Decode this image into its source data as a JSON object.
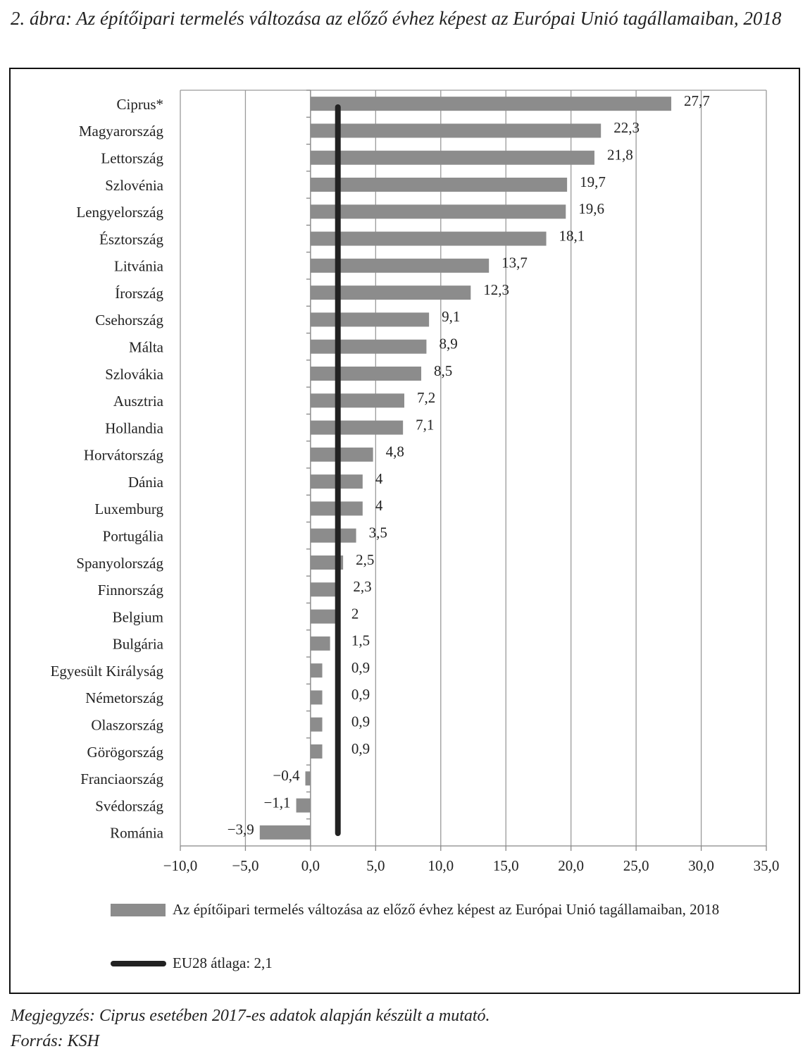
{
  "chart_data": {
    "type": "bar",
    "orientation": "horizontal",
    "title": "2. ábra: Az építőipari termelés változása az előző évhez képest az Európai Unió tagállamaiban, 2018",
    "categories": [
      "Ciprus*",
      "Magyarország",
      "Lettország",
      "Szlovénia",
      "Lengyelország",
      "Észtország",
      "Litvánia",
      "Írország",
      "Csehország",
      "Málta",
      "Szlovákia",
      "Ausztria",
      "Hollandia",
      "Horvátország",
      "Dánia",
      "Luxemburg",
      "Portugália",
      "Spanyolország",
      "Finnország",
      "Belgium",
      "Bulgária",
      "Egyesült Királyság",
      "Németország",
      "Olaszország",
      "Görögország",
      "Franciaország",
      "Svédország",
      "Románia"
    ],
    "series": [
      {
        "name": "Az építőipari termelés változása az előző évhez képest az Európai Unió tagállamaiban, 2018",
        "color": "#8c8c8c",
        "values": [
          27.7,
          22.3,
          21.8,
          19.7,
          19.6,
          18.1,
          13.7,
          12.3,
          9.1,
          8.9,
          8.5,
          7.2,
          7.1,
          4.8,
          4,
          4,
          3.5,
          2.5,
          2.3,
          2,
          1.5,
          0.9,
          0.9,
          0.9,
          0.9,
          -0.4,
          -1.1,
          -3.9
        ],
        "value_labels": [
          "27,7",
          "22,3",
          "21,8",
          "19,7",
          "19,6",
          "18,1",
          "13,7",
          "12,3",
          "9,1",
          "8,9",
          "8,5",
          "7,2",
          "7,1",
          "4,8",
          "4",
          "4",
          "3,5",
          "2,5",
          "2,3",
          "2",
          "1,5",
          "0,9",
          "0,9",
          "0,9",
          "0,9",
          "−0,4",
          "−1,1",
          "−3,9"
        ]
      }
    ],
    "reference_line": {
      "name": "EU28 átlaga: 2,1",
      "value": 2.1,
      "color": "#222222"
    },
    "xlim": [
      -10,
      35
    ],
    "xticks": [
      {
        "value": -10,
        "label": "−10,0"
      },
      {
        "value": -5,
        "label": "−5,0"
      },
      {
        "value": 0,
        "label": "0,0"
      },
      {
        "value": 5,
        "label": "5,0"
      },
      {
        "value": 10,
        "label": "10,0"
      },
      {
        "value": 15,
        "label": "15,0"
      },
      {
        "value": 20,
        "label": "20,0"
      },
      {
        "value": 25,
        "label": "25,0"
      },
      {
        "value": 30,
        "label": "30,0"
      },
      {
        "value": 35,
        "label": "35,0"
      }
    ],
    "grid": true,
    "note": "Megjegyzés: Ciprus esetében 2017-es adatok alapján készült a mutató.",
    "source": "Forrás: KSH"
  }
}
